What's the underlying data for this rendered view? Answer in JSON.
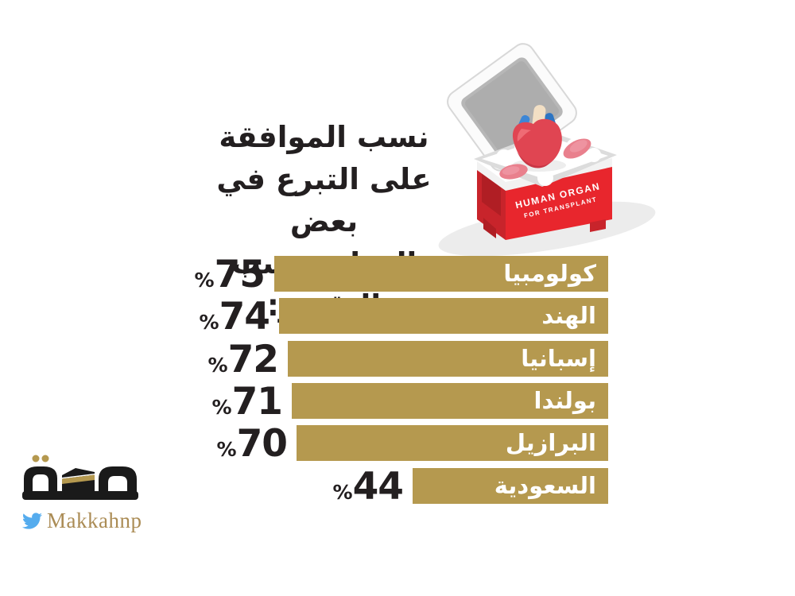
{
  "title": {
    "lines": [
      "نسب الموافقة",
      "على التبرع في بعض",
      "الدول بحسب التقرير:"
    ]
  },
  "chart_data": {
    "type": "bar",
    "orientation": "horizontal-rtl",
    "title": "نسب الموافقة على التبرع في بعض الدول بحسب التقرير:",
    "categories": [
      "كولومبيا",
      "الهند",
      "إسبانيا",
      "بولندا",
      "البرازيل",
      "السعودية"
    ],
    "values": [
      75,
      74,
      72,
      71,
      70,
      44
    ],
    "value_prefix": "%",
    "value_position": "left-of-bar",
    "xlim": [
      0,
      100
    ],
    "grid": false,
    "bar_color": "#b5994f",
    "label_color": "#ffffff",
    "value_color": "#231f20"
  },
  "illustration": {
    "name": "organ-transplant-cooler",
    "box_label_line1": "HUMAN ORGAN",
    "box_label_line2": "FOR TRANSPLANT"
  },
  "footer": {
    "logo": "makkah-newspaper-logo",
    "twitter_handle": "Makkahnp"
  },
  "palette": {
    "background": "#ffffff",
    "bar_gold": "#b5994f",
    "text_dark": "#231f20",
    "bar_label_white": "#ffffff",
    "cooler_red_front": "#e8262d",
    "cooler_red_side": "#c8242b",
    "cooler_red_inset": "#b01e24",
    "lid_gray": "#b7b7b7",
    "rim_gray": "#dcdcdc",
    "heart_red": "#e04552",
    "heart_dark": "#c93746",
    "kidney_pink": "#e9808d",
    "vessel_blue": "#3c86d6",
    "aorta_cream": "#f2dfc4",
    "shadow_gray": "#ececec",
    "logo_black": "#1a1a1a",
    "logo_gold": "#b5994f",
    "twitter_blue": "#55acee",
    "handle_gold": "#ab8c55"
  }
}
